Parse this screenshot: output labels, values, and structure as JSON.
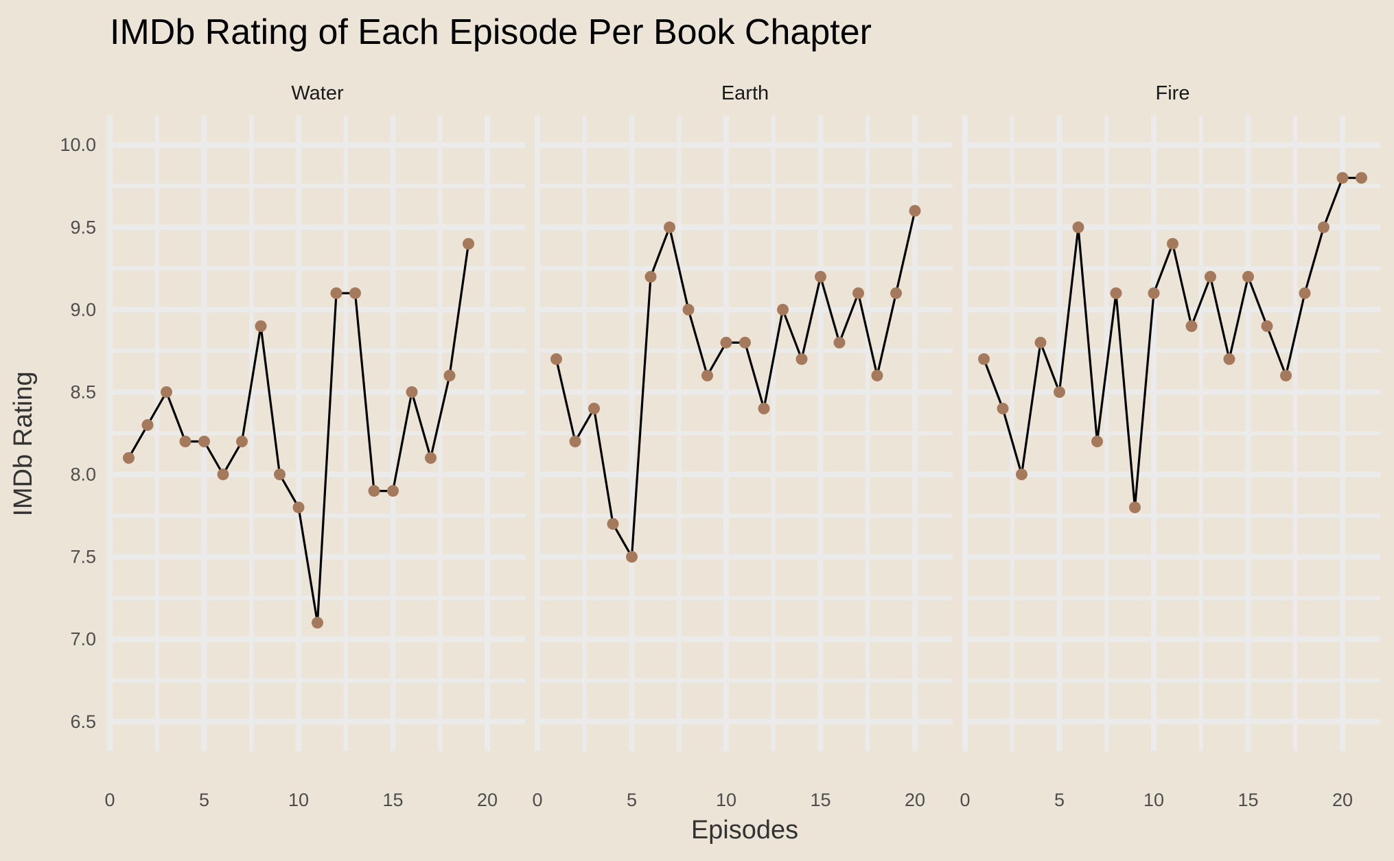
{
  "chart_data": {
    "type": "line",
    "title": "IMDb Rating of Each Episode Per Book Chapter",
    "xlabel": "Episodes",
    "ylabel": "IMDb Rating",
    "ylim": [
      6.32,
      10.18
    ],
    "yticks": [
      6.5,
      7.0,
      7.5,
      8.0,
      8.5,
      9.0,
      9.5,
      10.0
    ],
    "ytick_labels": [
      "6.5",
      "7.0",
      "7.5",
      "8.0",
      "8.5",
      "9.0",
      "9.5",
      "10.0"
    ],
    "xtick_labels": [
      "0",
      "5",
      "10",
      "15",
      "20"
    ],
    "xticks": [
      0,
      5,
      10,
      15,
      20
    ],
    "grid": true,
    "point_color": "#a57a5c",
    "line_color": "#000000",
    "background_color": "#ece4d6",
    "grid_color": "#ebebeb",
    "panels": [
      {
        "name": "Water",
        "xlim": [
          0,
          22
        ],
        "x": [
          1,
          2,
          3,
          4,
          5,
          6,
          7,
          8,
          9,
          10,
          11,
          12,
          13,
          14,
          15,
          16,
          17,
          18,
          19
        ],
        "values": [
          8.1,
          8.3,
          8.5,
          8.2,
          8.2,
          8.0,
          8.2,
          8.9,
          8.0,
          7.8,
          7.1,
          9.1,
          9.1,
          7.9,
          7.9,
          8.5,
          8.1,
          8.6,
          9.4
        ]
      },
      {
        "name": "Earth",
        "xlim": [
          0,
          22
        ],
        "x": [
          1,
          2,
          3,
          4,
          5,
          6,
          7,
          8,
          9,
          10,
          11,
          12,
          13,
          14,
          15,
          16,
          17,
          18,
          19,
          20
        ],
        "values": [
          8.7,
          8.2,
          8.4,
          7.7,
          7.5,
          9.2,
          9.5,
          9.0,
          8.6,
          8.8,
          8.8,
          8.4,
          9.0,
          8.7,
          9.2,
          8.8,
          9.1,
          8.6,
          9.1,
          9.6
        ]
      },
      {
        "name": "Fire",
        "xlim": [
          0,
          22
        ],
        "x": [
          1,
          2,
          3,
          4,
          5,
          6,
          7,
          8,
          9,
          10,
          11,
          12,
          13,
          14,
          15,
          16,
          17,
          18,
          19,
          20,
          21
        ],
        "values": [
          8.7,
          8.4,
          8.0,
          8.8,
          8.5,
          9.5,
          8.2,
          9.1,
          7.8,
          9.1,
          9.4,
          8.9,
          9.2,
          8.7,
          9.2,
          8.9,
          8.6,
          9.1,
          9.5,
          9.8,
          9.8
        ]
      }
    ]
  }
}
